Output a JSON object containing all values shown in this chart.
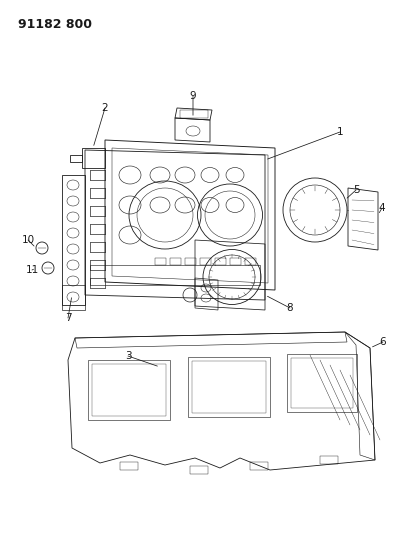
{
  "title_text": "91182 800",
  "bg_color": "#ffffff",
  "line_color": "#1a1a1a",
  "title_fontsize": 9,
  "label_fontsize": 7.5,
  "lw": 0.6
}
